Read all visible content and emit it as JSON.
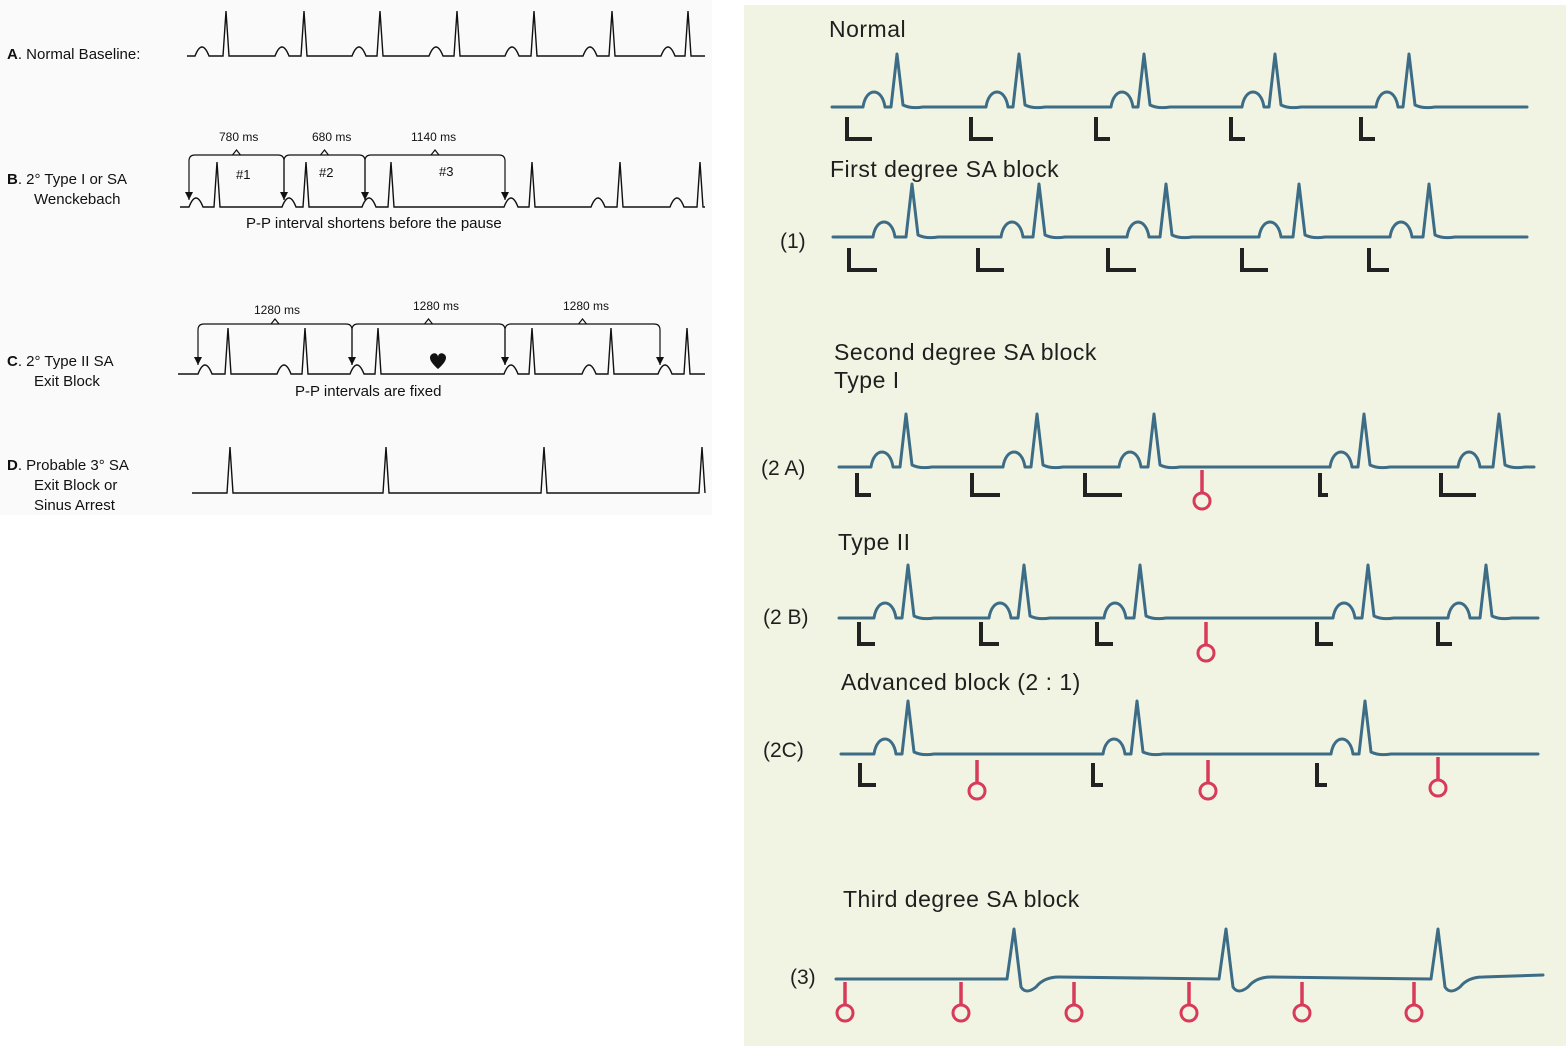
{
  "left": {
    "A": {
      "letter": "A",
      "text": ". Normal Baseline:"
    },
    "B": {
      "letter": "B",
      "line1": ". 2° Type I or SA",
      "line2": "Wenckebach",
      "intervals": [
        "780 ms",
        "680 ms",
        "1140 ms"
      ],
      "markers": [
        "#1",
        "#2",
        "#3"
      ],
      "note": "P-P interval shortens before the pause"
    },
    "C": {
      "letter": "C",
      "line1": ". 2° Type II  SA",
      "line2": "Exit Block",
      "intervals": [
        "1280 ms",
        "1280 ms",
        "1280 ms"
      ],
      "note": "P-P intervals are fixed"
    },
    "D": {
      "letter": "D",
      "line1": ". Probable 3° SA",
      "line2": "Exit Block or",
      "line3": "Sinus Arrest"
    }
  },
  "right": {
    "normal": "Normal",
    "first": "First degree SA block",
    "label_1": "(1)",
    "second": "Second degree SA block",
    "type1": "Type I",
    "label_2a": "(2 A)",
    "type2": "Type II",
    "label_2b": "(2 B)",
    "advanced": "Advanced block (2 : 1)",
    "label_2c": "(2C)",
    "third": "Third degree SA block",
    "label_3": "(3)"
  },
  "colors": {
    "trace": "#3d6c86",
    "sa_pacer": "#d83a5a",
    "pacer_dark": "#222222",
    "left_trace": "#111111"
  }
}
